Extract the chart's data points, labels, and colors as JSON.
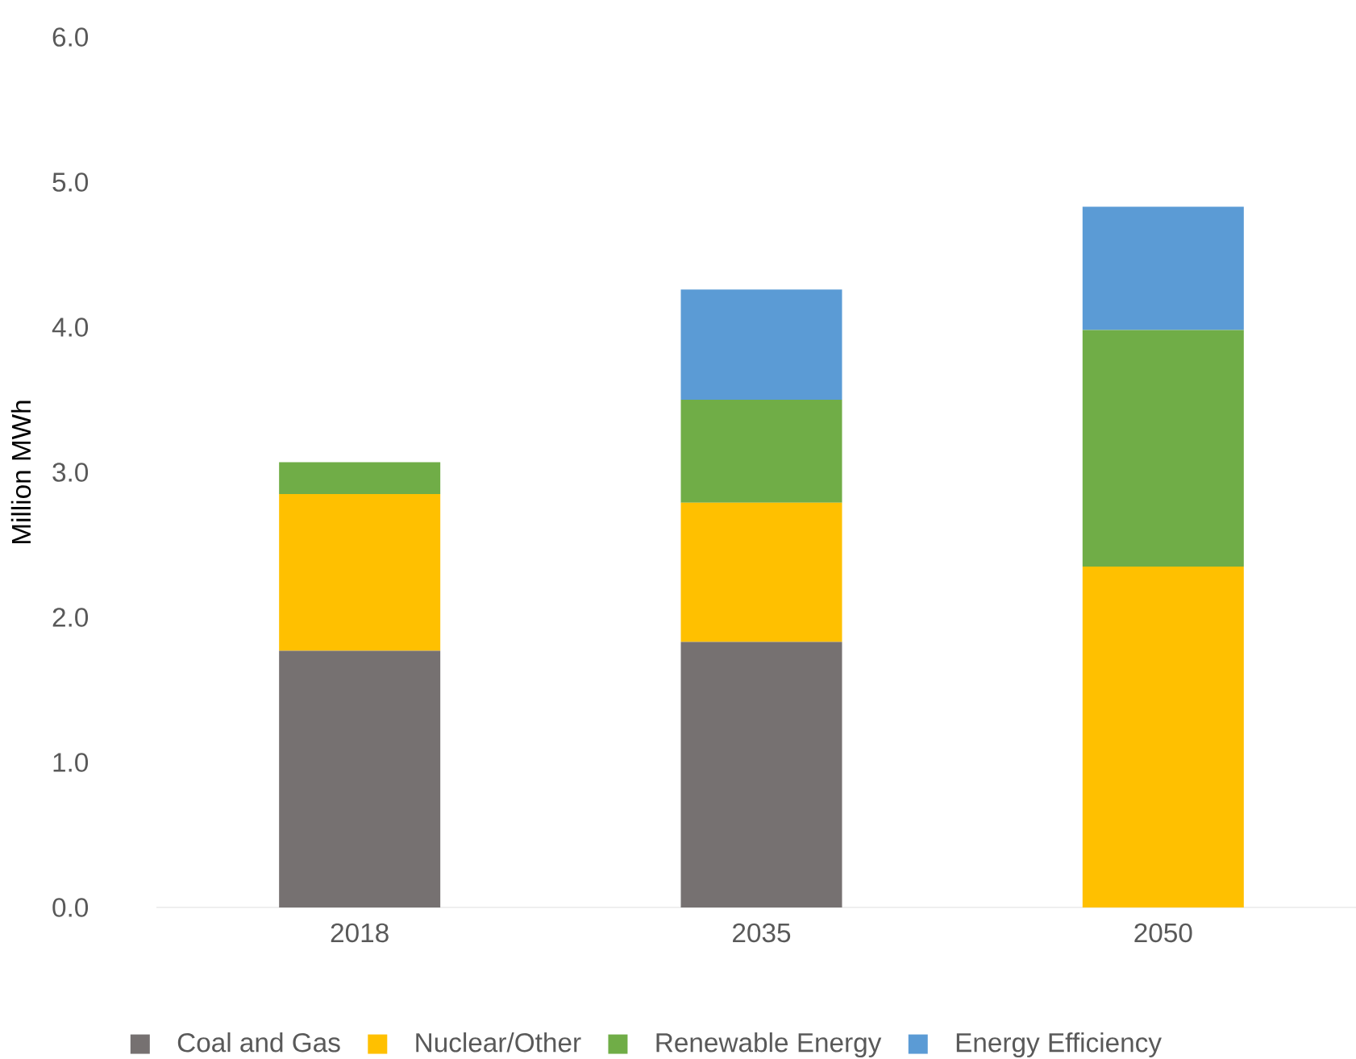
{
  "chart_data": {
    "type": "bar",
    "stacked": true,
    "ylabel": "Million MWh",
    "categories": [
      "2018",
      "2035",
      "2050"
    ],
    "series": [
      {
        "name": "Coal and Gas",
        "color": "#767171",
        "values": [
          1.77,
          1.83,
          0
        ]
      },
      {
        "name": "Nuclear/Other",
        "color": "#ffc000",
        "values": [
          1.08,
          0.96,
          2.35
        ]
      },
      {
        "name": "Renewable Energy",
        "color": "#70ad47",
        "values": [
          0.22,
          0.71,
          1.63
        ]
      },
      {
        "name": "Energy Efficiency",
        "color": "#5b9bd5",
        "values": [
          0,
          0.76,
          0.85
        ]
      }
    ],
    "ylim": [
      0,
      6
    ],
    "yticks": [
      {
        "value": 0,
        "label": "0.0"
      },
      {
        "value": 1,
        "label": "1.0"
      },
      {
        "value": 2,
        "label": "2.0"
      },
      {
        "value": 3,
        "label": "3.0"
      },
      {
        "value": 4,
        "label": "4.0"
      },
      {
        "value": 5,
        "label": "5.0"
      },
      {
        "value": 6,
        "label": "6.0"
      }
    ],
    "grid": false,
    "legend": "bottom"
  }
}
